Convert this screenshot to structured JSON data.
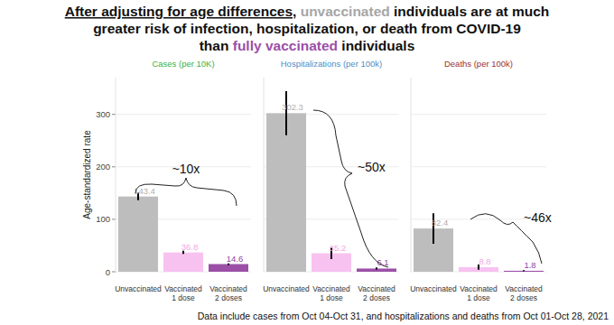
{
  "title": [
    [
      {
        "text": "After adjusting for age differences"
      },
      {
        "text": ", "
      },
      {
        "text": "unvaccinated",
        "color": "#a6a6a6"
      },
      {
        "text": " individuals are at much"
      }
    ],
    [
      {
        "text": "greater risk of infection, hospitalization, or death from COVID-19"
      }
    ],
    [
      {
        "text": "than "
      },
      {
        "text": "fully vaccinated",
        "color": "#9b4fa7"
      },
      {
        "text": " individuals"
      }
    ]
  ],
  "note": "Data include cases from Oct 04-Oct 31, and hospitalizations and deaths from Oct 01-Oct 28, 2021",
  "chart_data": [
    {
      "type": "bar",
      "title": "Cases (per 10K)",
      "y_label": "Age-standardized rate",
      "categories": [
        "Unvaccinated",
        "Vaccinated 1 dose",
        "Vaccinated 2 doses"
      ],
      "values": [
        143.4,
        36.8,
        14.6
      ],
      "errors": [
        7,
        3,
        1.5
      ],
      "colors": [
        "#bdbdbd",
        "#f7c2f0",
        "#9b4fa7"
      ],
      "ylim": [
        0,
        370
      ],
      "yticks": [
        0,
        100,
        200,
        300
      ],
      "grid": true,
      "data_labels": true,
      "annotation": "~10x"
    },
    {
      "type": "bar",
      "title": "Hospitalizations (per 100k)",
      "categories": [
        "Unvaccinated",
        "Vaccinated 1 dose",
        "Vaccinated 2 doses"
      ],
      "values": [
        302.3,
        35.2,
        6.1
      ],
      "errors": [
        42,
        11,
        2
      ],
      "colors": [
        "#bdbdbd",
        "#f7c2f0",
        "#9b4fa7"
      ],
      "ylim": [
        0,
        370
      ],
      "yticks": [
        0,
        100,
        200,
        300
      ],
      "grid": true,
      "data_labels": true,
      "tick_labels": "x",
      "annotation": "~50x"
    },
    {
      "type": "bar",
      "title": "Deaths (per 100k)",
      "categories": [
        "Unvaccinated",
        "Vaccinated 1 dose",
        "Vaccinated 2 doses"
      ],
      "values": [
        82.4,
        8.8,
        1.8
      ],
      "errors": [
        29,
        5,
        1
      ],
      "colors": [
        "#bdbdbd",
        "#f7c2f0",
        "#9b4fa7"
      ],
      "ylim": [
        0,
        370
      ],
      "yticks": [
        0,
        100,
        200,
        300
      ],
      "grid": true,
      "data_labels": true,
      "tick_labels": "x",
      "annotation": "~46x"
    }
  ]
}
